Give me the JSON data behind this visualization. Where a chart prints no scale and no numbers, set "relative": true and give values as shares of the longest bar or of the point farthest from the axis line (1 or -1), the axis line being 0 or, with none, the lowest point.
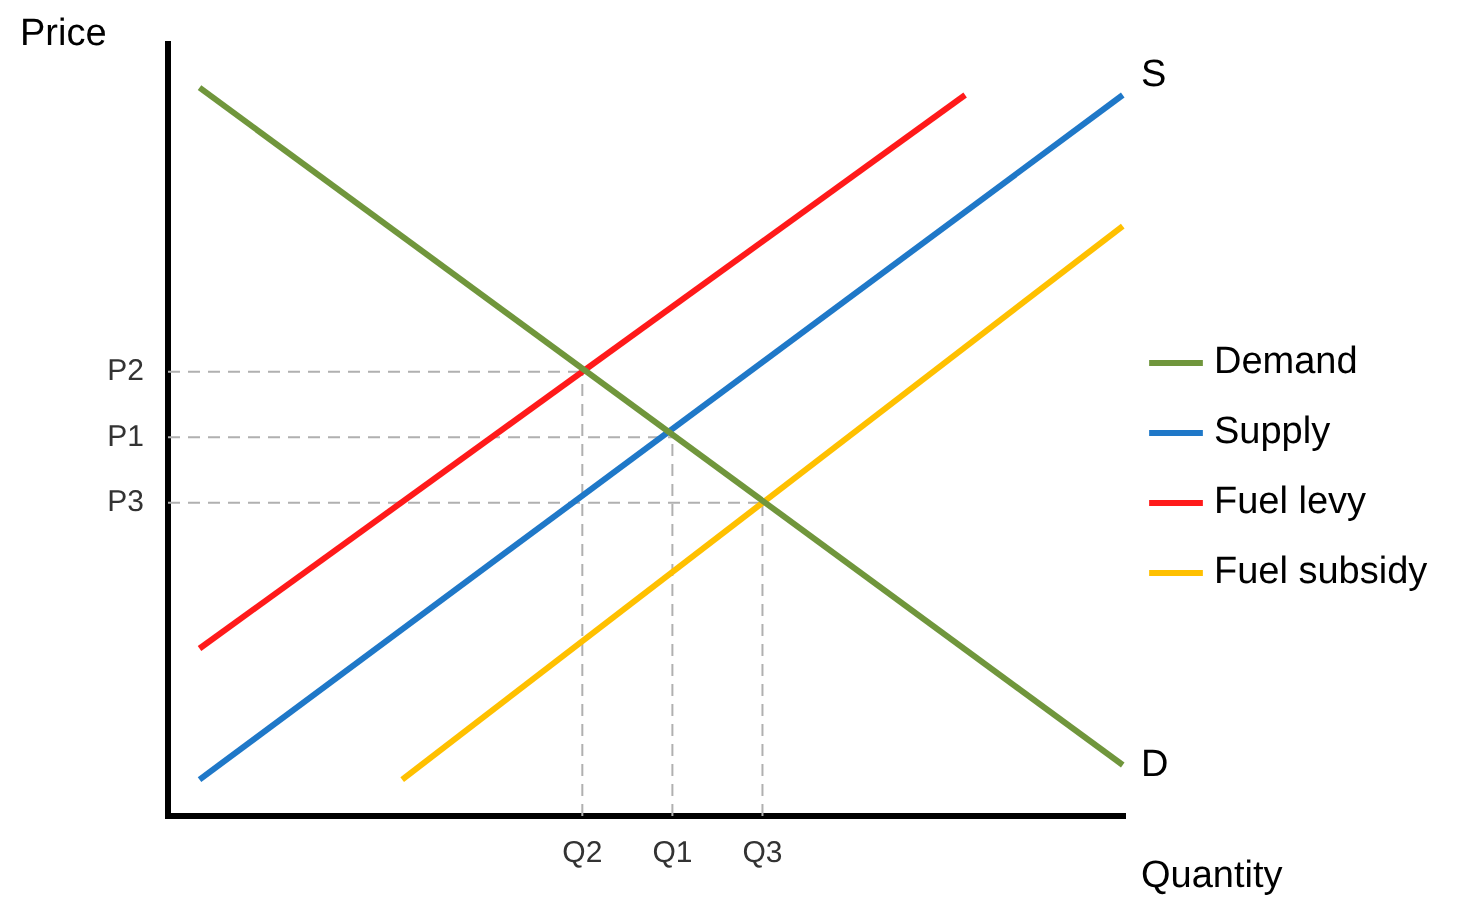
{
  "chart_data": {
    "type": "line",
    "relative": true,
    "xlabel": "Quantity",
    "ylabel": "Price",
    "categories": [
      null,
      null,
      null,
      null,
      null,
      null,
      null,
      null,
      null,
      null,
      null,
      null,
      null,
      null,
      null,
      null,
      null,
      "Q2",
      null,
      null,
      null,
      "Q1",
      null,
      null,
      null,
      "Q3",
      null,
      null,
      null,
      null,
      null,
      null,
      null,
      null,
      null,
      null,
      null,
      null,
      null,
      null,
      null,
      null
    ],
    "legend": "right",
    "grid": false,
    "marker": "none",
    "line_style": "solid",
    "series": [
      {
        "name": "Demand",
        "color": "#70963c",
        "values": [
          1,
          null,
          null,
          null,
          null,
          null,
          null,
          null,
          null,
          null,
          null,
          null,
          null,
          null,
          null,
          null,
          null,
          null,
          null,
          null,
          null,
          null,
          null,
          null,
          null,
          null,
          null,
          null,
          null,
          null,
          null,
          null,
          null,
          null,
          null,
          null,
          null,
          null,
          null,
          null,
          null,
          0.07
        ]
      },
      {
        "name": "Supply",
        "color": "#1f78c8",
        "values": [
          0.05,
          null,
          null,
          null,
          null,
          null,
          null,
          null,
          null,
          null,
          null,
          null,
          null,
          null,
          null,
          null,
          null,
          null,
          null,
          null,
          null,
          null,
          null,
          null,
          null,
          null,
          null,
          null,
          null,
          null,
          null,
          null,
          null,
          null,
          null,
          null,
          null,
          null,
          null,
          null,
          null,
          0.99
        ]
      },
      {
        "name": "Fuel levy",
        "color": "#ff1a1a",
        "values": [
          0.23,
          null,
          null,
          null,
          null,
          null,
          null,
          null,
          null,
          null,
          null,
          null,
          null,
          null,
          null,
          null,
          null,
          null,
          null,
          null,
          null,
          null,
          null,
          null,
          null,
          null,
          null,
          null,
          null,
          null,
          null,
          null,
          null,
          null,
          0.99,
          null,
          null,
          null,
          null,
          null,
          null,
          null
        ]
      },
      {
        "name": "Fuel subsidy",
        "color": "#ffc000",
        "values": [
          null,
          null,
          null,
          null,
          null,
          null,
          null,
          null,
          null,
          0.05,
          null,
          null,
          null,
          null,
          null,
          null,
          null,
          null,
          null,
          null,
          null,
          null,
          null,
          null,
          null,
          null,
          null,
          null,
          null,
          null,
          null,
          null,
          null,
          null,
          null,
          null,
          null,
          null,
          null,
          null,
          null,
          0.81
        ]
      }
    ],
    "ref_lines": [
      {
        "axis": "x",
        "value": "Q2",
        "line_style": "dashed",
        "color": "#b0b0b0"
      },
      {
        "axis": "x",
        "value": "Q1",
        "line_style": "dashed",
        "color": "#b0b0b0"
      },
      {
        "axis": "x",
        "value": "Q3",
        "line_style": "dashed",
        "color": "#b0b0b0"
      },
      {
        "axis": "y",
        "value": 0.61,
        "label": "P2",
        "line_style": "dashed",
        "color": "#b0b0b0"
      },
      {
        "axis": "y",
        "value": 0.52,
        "label": "P1",
        "line_style": "dashed",
        "color": "#b0b0b0"
      },
      {
        "axis": "y",
        "value": 0.43,
        "label": "P3",
        "line_style": "dashed",
        "color": "#b0b0b0"
      }
    ],
    "annotations": [
      "S",
      "D"
    ]
  }
}
